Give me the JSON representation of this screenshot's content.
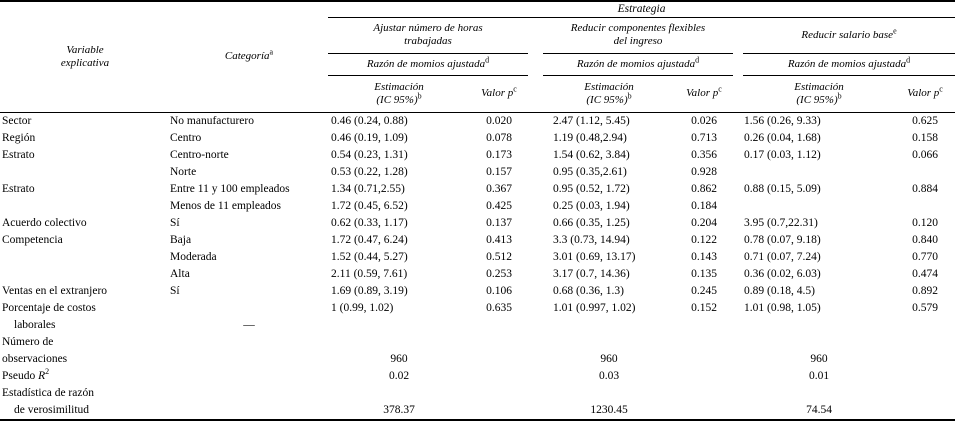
{
  "colors": {
    "text": "#000000",
    "rule": "#000000",
    "background": "#ffffff"
  },
  "table": {
    "strategy_group_title": "Estrategia",
    "col_variable": {
      "line1": "Variable",
      "line2": "explicativa"
    },
    "col_categoria": {
      "text": "Categoría",
      "sup": "a"
    },
    "strategies": [
      {
        "line1": "Ajustar número de horas",
        "line2": "trabajadas",
        "sup": ""
      },
      {
        "line1": "Reducir componentes flexibles",
        "line2": "del ingreso",
        "sup": ""
      },
      {
        "line1": "Reducir salario base",
        "line2": "",
        "sup": "e"
      }
    ],
    "subheader": {
      "text": "Razón de momios ajustada",
      "sup": "d"
    },
    "col_estimacion": {
      "line1": "Estimación",
      "line2": "(IC 95%)",
      "sup": "b"
    },
    "col_valor_p": {
      "text": "Valor p",
      "sup": "c"
    },
    "rows": [
      {
        "v": "Sector",
        "c": "No manufacturero",
        "cells": [
          "0.46 (0.24, 0.88)",
          "0.020",
          "2.47 (1.12, 5.45)",
          "0.026",
          "1.56 (0.26, 9.33)",
          "0.625"
        ]
      },
      {
        "v": "Región",
        "c": "Centro",
        "cells": [
          "0.46 (0.19, 1.09)",
          "0.078",
          "1.19 (0.48,2.94)",
          "0.713",
          "0.26 (0.04, 1.68)",
          "0.158"
        ]
      },
      {
        "v": "Estrato",
        "c": "Centro-norte",
        "cells": [
          "0.54 (0.23, 1.31)",
          "0.173",
          "1.54 (0.62, 3.84)",
          "0.356",
          "0.17 (0.03, 1.12)",
          "0.066"
        ]
      },
      {
        "v": "",
        "c": "Norte",
        "cells": [
          "0.53 (0.22, 1.28)",
          "0.157",
          "0.95 (0.35,2.61)",
          "0.928",
          "",
          ""
        ]
      },
      {
        "v": "Estrato",
        "c": "Entre 11 y 100 empleados",
        "cells": [
          "1.34 (0.71,2.55)",
          "0.367",
          "0.95 (0.52, 1.72)",
          "0.862",
          "0.88 (0.15, 5.09)",
          "0.884"
        ]
      },
      {
        "v": "",
        "c": "Menos de 11 empleados",
        "cells": [
          "1.72 (0.45, 6.52)",
          "0.425",
          "0.25 (0.03, 1.94)",
          "0.184",
          "",
          ""
        ]
      },
      {
        "v": "Acuerdo colectivo",
        "c": "Sí",
        "cells": [
          "0.62 (0.33, 1.17)",
          "0.137",
          "0.66 (0.35, 1.25)",
          "0.204",
          "3.95 (0.7,22.31)",
          "0.120"
        ]
      },
      {
        "v": "Competencia",
        "c": "Baja",
        "cells": [
          "1.72 (0.47, 6.24)",
          "0.413",
          "3.3 (0.73, 14.94)",
          "0.122",
          "0.78 (0.07, 9.18)",
          "0.840"
        ]
      },
      {
        "v": "",
        "c": "Moderada",
        "cells": [
          "1.52 (0.44, 5.27)",
          "0.512",
          "3.01 (0.69, 13.17)",
          "0.143",
          "0.71 (0.07, 7.24)",
          "0.770"
        ]
      },
      {
        "v": "",
        "c": "Alta",
        "cells": [
          "2.11 (0.59, 7.61)",
          "0.253",
          "3.17 (0.7, 14.36)",
          "0.135",
          "0.36 (0.02, 6.03)",
          "0.474"
        ]
      },
      {
        "v": "Ventas en el extranjero",
        "c": "Sí",
        "cells": [
          "1.69 (0.89, 3.19)",
          "0.106",
          "0.68 (0.36, 1.3)",
          "0.245",
          "0.89 (0.18, 4.5)",
          "0.892"
        ]
      },
      {
        "v": "Porcentaje de costos",
        "c": "",
        "cells": [
          "1 (0.99, 1.02)",
          "0.635",
          "1.01 (0.997, 1.02)",
          "0.152",
          "1.01 (0.98, 1.05)",
          "0.579"
        ]
      },
      {
        "v": "laborales",
        "indent": true,
        "c": "—",
        "c_center": true,
        "cells": [
          "",
          "",
          "",
          "",
          "",
          ""
        ]
      },
      {
        "v": "Número de",
        "c": "",
        "cells": [
          "",
          "",
          "",
          "",
          "",
          ""
        ]
      },
      {
        "v": "observaciones",
        "c": "",
        "center": true,
        "cells": [
          "960",
          "",
          "960",
          "",
          "960",
          ""
        ]
      },
      {
        "v_parts": [
          {
            "t": "Pseudo "
          },
          {
            "t": "R",
            "i": true
          },
          {
            "t": "2",
            "sup": true
          }
        ],
        "c": "",
        "center": true,
        "cells": [
          "0.02",
          "",
          "0.03",
          "",
          "0.01",
          ""
        ]
      },
      {
        "v": "Estadística de razón",
        "c": "",
        "cells": [
          "",
          "",
          "",
          "",
          "",
          ""
        ]
      },
      {
        "v": "de verosimilitud",
        "indent": true,
        "c": "",
        "center": true,
        "cells": [
          "378.37",
          "",
          "1230.45",
          "",
          "74.54",
          ""
        ]
      }
    ]
  }
}
